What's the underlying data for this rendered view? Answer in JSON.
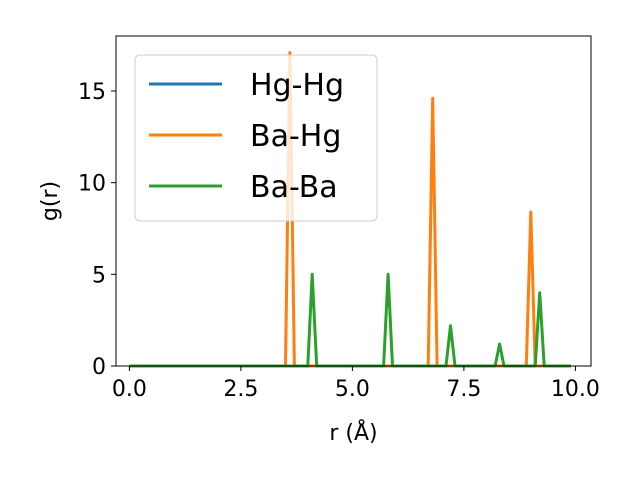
{
  "chart_data": {
    "type": "line",
    "xlabel": "r (Å)",
    "ylabel": "g(r)",
    "xlim": [
      -0.3,
      10.35
    ],
    "ylim": [
      0,
      18
    ],
    "xticks": [
      0,
      2.5,
      5,
      7.5,
      10
    ],
    "xtick_labels": [
      "0.0",
      "2.5",
      "5.0",
      "7.5",
      "10.0"
    ],
    "yticks": [
      0,
      5,
      10,
      15
    ],
    "ytick_labels": [
      "0",
      "5",
      "10",
      "15"
    ],
    "grid": false,
    "legend_position": "upper-left",
    "series": [
      {
        "name": "Hg-Hg",
        "color": "#1f77b4",
        "x": [
          0,
          9.9
        ],
        "y": [
          0,
          0
        ]
      },
      {
        "name": "Ba-Hg",
        "color": "#ff7f0e",
        "x": [
          0,
          3.5,
          3.6,
          3.7,
          6.7,
          6.8,
          6.9,
          8.9,
          9.0,
          9.1,
          9.9
        ],
        "y": [
          0,
          0,
          17.1,
          0,
          0,
          14.6,
          0,
          0,
          8.4,
          0,
          0
        ]
      },
      {
        "name": "Ba-Ba",
        "color": "#2ca02c",
        "x": [
          0,
          4.0,
          4.1,
          4.2,
          5.7,
          5.8,
          5.9,
          7.1,
          7.2,
          7.3,
          8.2,
          8.3,
          8.4,
          9.1,
          9.2,
          9.3,
          9.9
        ],
        "y": [
          0,
          0,
          5.0,
          0,
          0,
          5.0,
          0,
          0,
          2.2,
          0,
          0,
          1.2,
          0,
          0,
          4.0,
          0,
          0
        ]
      }
    ]
  }
}
